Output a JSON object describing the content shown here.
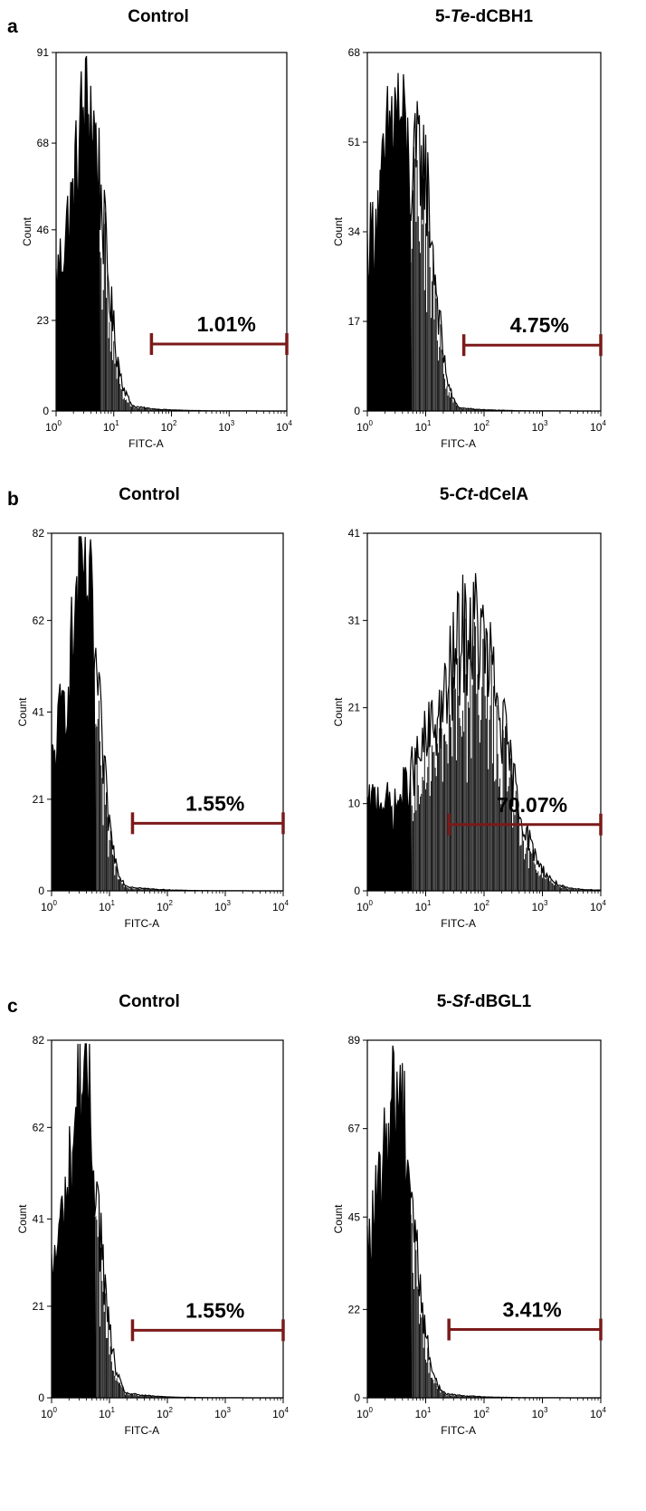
{
  "panels": [
    {
      "letter": "a"
    },
    {
      "letter": "b"
    },
    {
      "letter": "c"
    }
  ],
  "colors": {
    "histogram": "#000000",
    "gate": "#7b1a1a",
    "axis": "#000000",
    "background": "#ffffff"
  },
  "chart_data": [
    {
      "type": "area",
      "panel": "a",
      "title": "Control",
      "title_prefix": "",
      "title_italic": "",
      "title_suffix": "",
      "xlabel": "FITC-A",
      "ylabel": "Count",
      "xscale": "log",
      "xlim": [
        1,
        10000
      ],
      "ylim": [
        0,
        91
      ],
      "xticks": [
        {
          "base": "10",
          "exp": "0"
        },
        {
          "base": "10",
          "exp": "1"
        },
        {
          "base": "10",
          "exp": "2"
        },
        {
          "base": "10",
          "exp": "3"
        },
        {
          "base": "10",
          "exp": "4"
        }
      ],
      "yticks": [
        0,
        23,
        46,
        68,
        91
      ],
      "peak_x": 3.5,
      "peak_y": 80,
      "spread": 0.28,
      "fill_end_x": 5.8,
      "secondary_peak": null,
      "gate": {
        "x_start": 45,
        "x_end": 10000,
        "y": 17,
        "label": "1.01%"
      }
    },
    {
      "type": "area",
      "panel": "a",
      "title": "5-Te-dCBH1",
      "title_prefix": "5-",
      "title_italic": "Te",
      "title_suffix": "-dCBH1",
      "xlabel": "FITC-A",
      "ylabel": "Count",
      "xscale": "log",
      "xlim": [
        1,
        10000
      ],
      "ylim": [
        0,
        68
      ],
      "xticks": [
        {
          "base": "10",
          "exp": "0"
        },
        {
          "base": "10",
          "exp": "1"
        },
        {
          "base": "10",
          "exp": "2"
        },
        {
          "base": "10",
          "exp": "3"
        },
        {
          "base": "10",
          "exp": "4"
        }
      ],
      "yticks": [
        0,
        17,
        34,
        51,
        68
      ],
      "peak_x": 3.2,
      "peak_y": 58,
      "spread": 0.33,
      "fill_end_x": 5.8,
      "secondary_peak": {
        "x": 8,
        "y": 50
      },
      "gate": {
        "x_start": 45,
        "x_end": 10000,
        "y": 12.5,
        "label": "4.75%"
      }
    },
    {
      "type": "area",
      "panel": "b",
      "title": "Control",
      "title_prefix": "",
      "title_italic": "",
      "title_suffix": "",
      "xlabel": "FITC-A",
      "ylabel": "Count",
      "xscale": "log",
      "xlim": [
        1,
        10000
      ],
      "ylim": [
        0,
        82
      ],
      "xticks": [
        {
          "base": "10",
          "exp": "0"
        },
        {
          "base": "10",
          "exp": "1"
        },
        {
          "base": "10",
          "exp": "2"
        },
        {
          "base": "10",
          "exp": "3"
        },
        {
          "base": "10",
          "exp": "4"
        }
      ],
      "yticks": [
        0,
        21,
        41,
        62,
        82
      ],
      "peak_x": 3.5,
      "peak_y": 75,
      "spread": 0.26,
      "fill_end_x": 5.8,
      "secondary_peak": null,
      "gate": {
        "x_start": 25,
        "x_end": 10000,
        "y": 15.5,
        "label": "1.55%"
      }
    },
    {
      "type": "area",
      "panel": "b",
      "title": "5-Ct-dCelA",
      "title_prefix": "5-",
      "title_italic": "Ct",
      "title_suffix": "-dCelA",
      "xlabel": "FITC-A",
      "ylabel": "Count",
      "xscale": "log",
      "xlim": [
        1,
        10000
      ],
      "ylim": [
        0,
        41
      ],
      "xticks": [
        {
          "base": "10",
          "exp": "0"
        },
        {
          "base": "10",
          "exp": "1"
        },
        {
          "base": "10",
          "exp": "2"
        },
        {
          "base": "10",
          "exp": "3"
        },
        {
          "base": "10",
          "exp": "4"
        }
      ],
      "yticks": [
        0,
        10,
        21,
        31,
        41
      ],
      "peak_x": 60,
      "peak_y": 31,
      "spread": 0.55,
      "fill_end_x": 5.8,
      "secondary_peak": {
        "x": 1.6,
        "y": 11
      },
      "gate": {
        "x_start": 25,
        "x_end": 10000,
        "y": 7.6,
        "label": "70.07%"
      }
    },
    {
      "type": "area",
      "panel": "c",
      "title": "Control",
      "title_prefix": "",
      "title_italic": "",
      "title_suffix": "",
      "xlabel": "FITC-A",
      "ylabel": "Count",
      "xscale": "log",
      "xlim": [
        1,
        10000
      ],
      "ylim": [
        0,
        82
      ],
      "xticks": [
        {
          "base": "10",
          "exp": "0"
        },
        {
          "base": "10",
          "exp": "1"
        },
        {
          "base": "10",
          "exp": "2"
        },
        {
          "base": "10",
          "exp": "3"
        },
        {
          "base": "10",
          "exp": "4"
        }
      ],
      "yticks": [
        0,
        21,
        41,
        62,
        82
      ],
      "peak_x": 3.5,
      "peak_y": 75,
      "spread": 0.26,
      "fill_end_x": 5.8,
      "secondary_peak": null,
      "gate": {
        "x_start": 25,
        "x_end": 10000,
        "y": 15.5,
        "label": "1.55%"
      }
    },
    {
      "type": "area",
      "panel": "c",
      "title": "5-Sf-dBGL1",
      "title_prefix": "5-",
      "title_italic": "Sf",
      "title_suffix": "-dBGL1",
      "xlabel": "FITC-A",
      "ylabel": "Count",
      "xscale": "log",
      "xlim": [
        1,
        10000
      ],
      "ylim": [
        0,
        89
      ],
      "xticks": [
        {
          "base": "10",
          "exp": "0"
        },
        {
          "base": "10",
          "exp": "1"
        },
        {
          "base": "10",
          "exp": "2"
        },
        {
          "base": "10",
          "exp": "3"
        },
        {
          "base": "10",
          "exp": "4"
        }
      ],
      "yticks": [
        0,
        22,
        45,
        67,
        89
      ],
      "peak_x": 3.2,
      "peak_y": 80,
      "spread": 0.28,
      "fill_end_x": 5.8,
      "secondary_peak": null,
      "gate": {
        "x_start": 25,
        "x_end": 10000,
        "y": 17,
        "label": "3.41%"
      }
    }
  ]
}
